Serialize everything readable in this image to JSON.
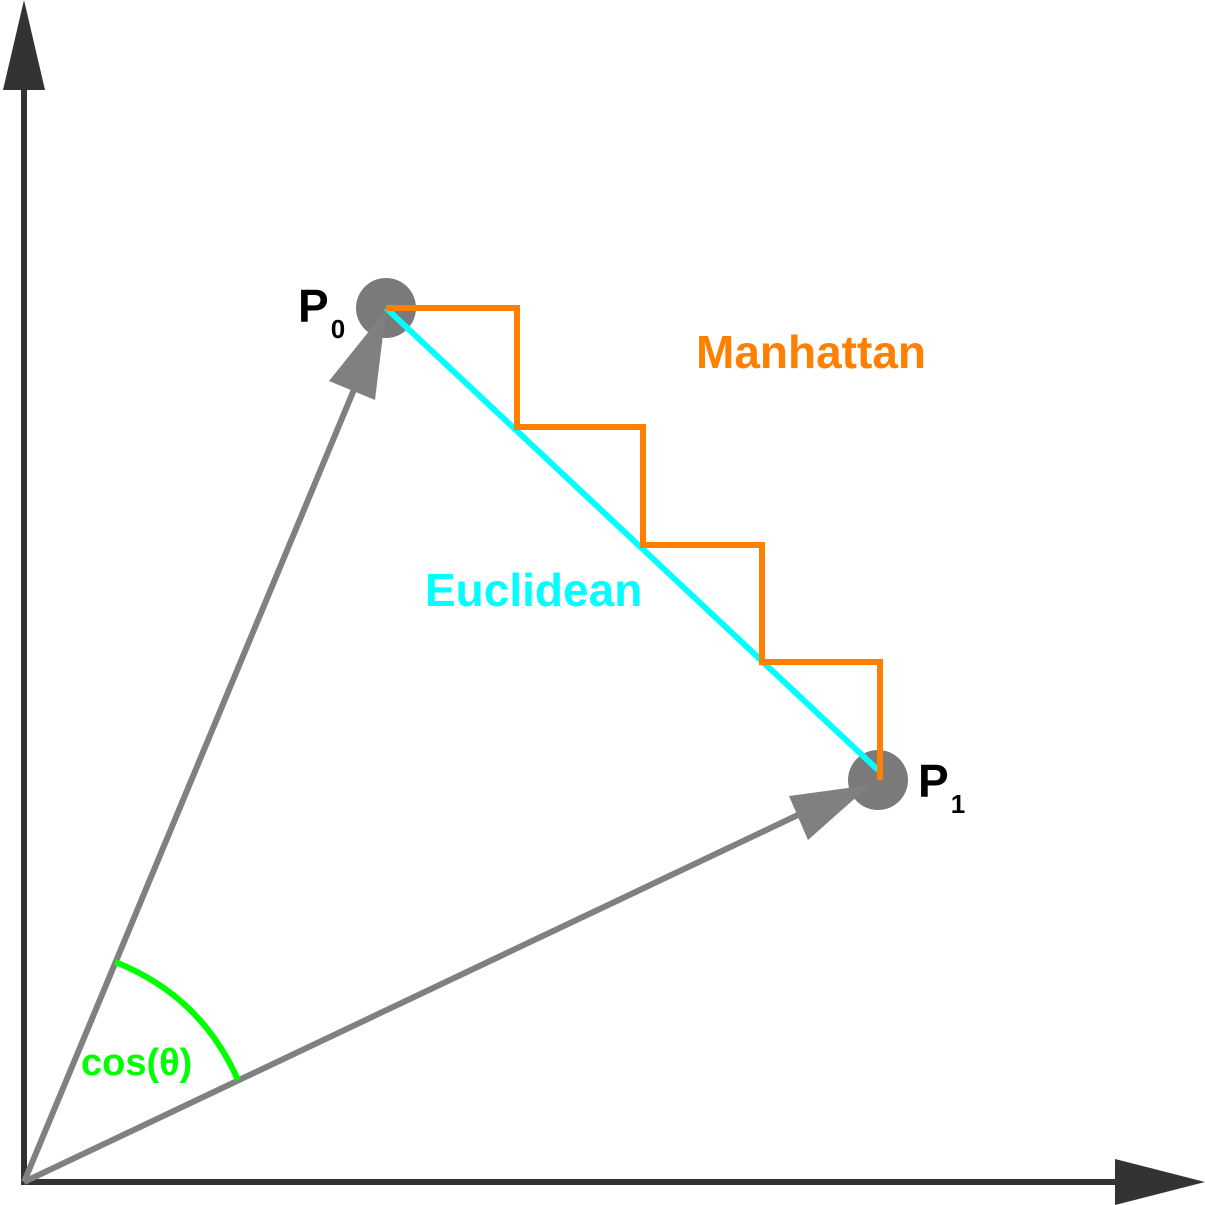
{
  "labels": {
    "p0": "P",
    "p0_sub": "0",
    "p1": "P",
    "p1_sub": "1",
    "manhattan": "Manhattan",
    "euclidean": "Euclidean",
    "angle": "cos(θ)"
  },
  "colors": {
    "axis": "#333333",
    "vector": "#808080",
    "point": "#7a7a7a",
    "manhattan": "#ff8000",
    "euclidean": "#00ffff",
    "angle": "#00ff00",
    "point_label": "#000000"
  }
}
